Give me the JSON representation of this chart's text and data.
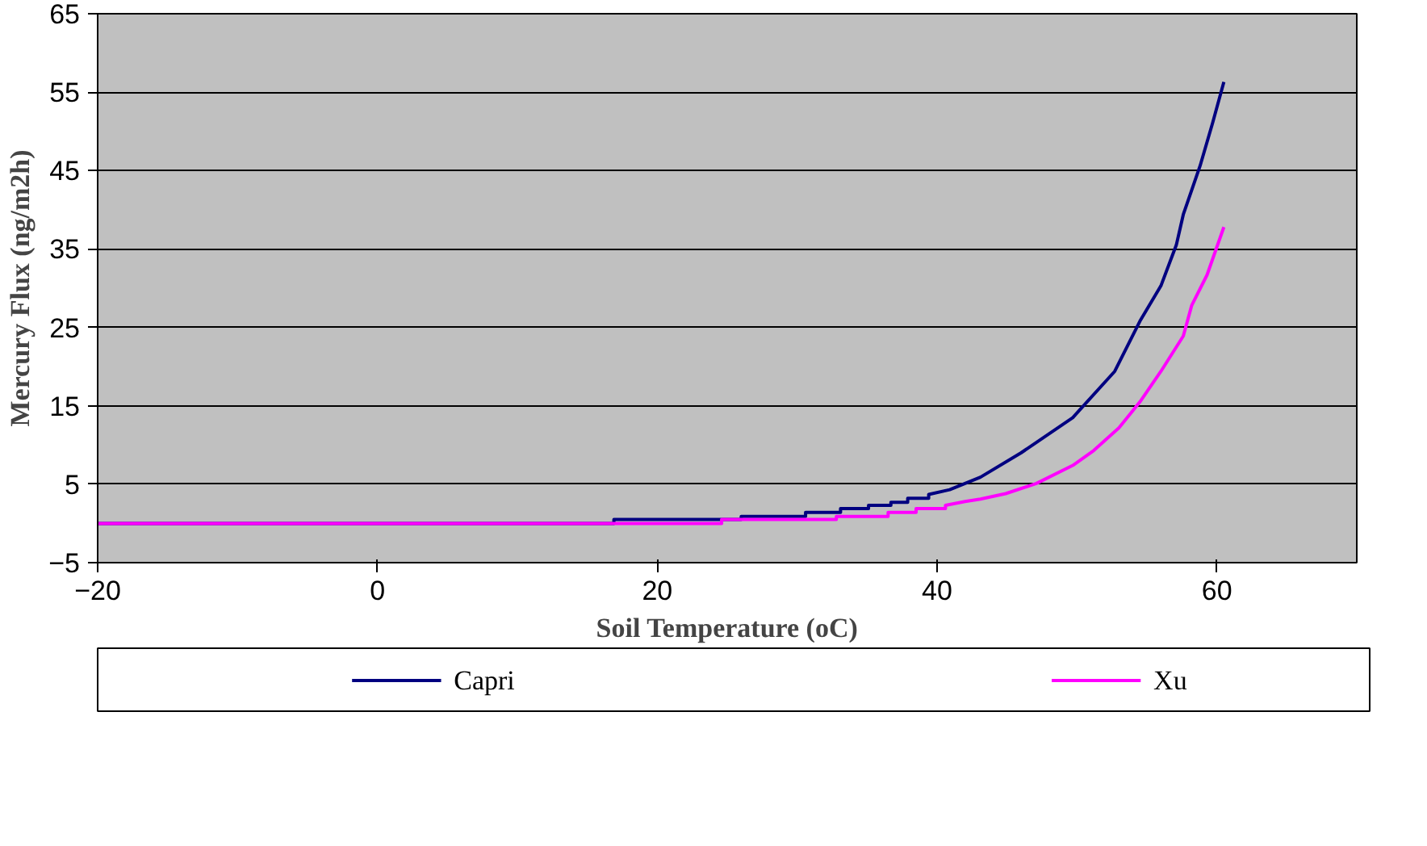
{
  "chart_data": {
    "type": "line",
    "xlabel": "Soil Temperature (oC)",
    "ylabel": "Mercury Flux (ng/m2h)",
    "xlim": [
      -20,
      70
    ],
    "xticks": [
      -20,
      0,
      20,
      40,
      60
    ],
    "ylim": [
      -5,
      65
    ],
    "yticks": [
      -5,
      5,
      15,
      25,
      35,
      45,
      55,
      65
    ],
    "grid": "y",
    "legend": "bottom",
    "marker": "none",
    "line_style": "solid",
    "series": [
      {
        "name": "Capri",
        "color": "#000080",
        "x": [
          -20,
          16.9,
          16.9,
          26,
          26,
          30.6,
          30.6,
          33.1,
          33.1,
          35.1,
          35.1,
          36.7,
          36.7,
          37.9,
          37.9,
          39.4,
          39.4,
          40.9,
          43.1,
          46.0,
          49.7,
          52.7,
          54.5,
          56.0,
          57.1,
          57.6,
          58.8,
          59.7,
          60.5
        ],
        "values": [
          0,
          0,
          0.5,
          0.5,
          0.9,
          0.9,
          1.4,
          1.4,
          1.9,
          1.9,
          2.3,
          2.3,
          2.7,
          2.7,
          3.2,
          3.2,
          3.7,
          4.3,
          5.9,
          9.0,
          13.5,
          19.4,
          25.8,
          30.3,
          35.5,
          39.4,
          45.6,
          51.1,
          56.3
        ]
      },
      {
        "name": "Xu",
        "color": "#ff00ff",
        "x": [
          -20,
          24.6,
          24.6,
          32.8,
          32.8,
          36.5,
          36.5,
          38.5,
          38.5,
          40.6,
          40.6,
          42,
          43.1,
          44.9,
          47.1,
          49.7,
          51.2,
          53.0,
          54.5,
          56.0,
          57.6,
          58.2,
          59.3,
          60.5
        ],
        "values": [
          0,
          0,
          0.5,
          0.5,
          0.9,
          0.9,
          1.4,
          1.4,
          1.9,
          1.9,
          2.3,
          2.8,
          3.1,
          3.8,
          5.1,
          7.4,
          9.3,
          12.2,
          15.5,
          19.4,
          23.9,
          27.8,
          31.7,
          37.8
        ]
      }
    ]
  }
}
